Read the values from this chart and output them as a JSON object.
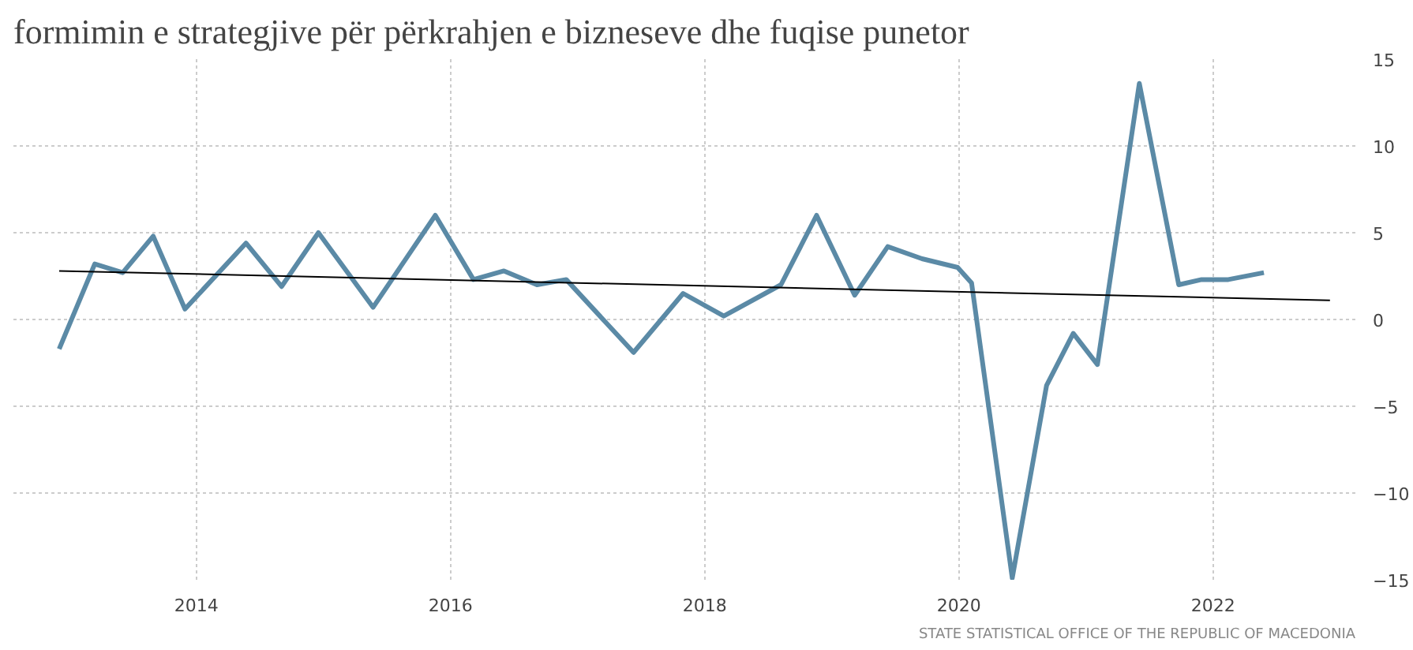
{
  "chart_data": {
    "type": "line",
    "title": "formimin e strategjive për përkrahjen e bizneseve dhe fuqise punetor",
    "annotations": [
      "STATE STATISTICAL OFFICE OF THE REPUBLIC OF MACEDONIA"
    ],
    "xlim": [
      2012.56,
      2023.12
    ],
    "xticks": [
      2014,
      2016,
      2018,
      2020,
      2022
    ],
    "ylim": [
      -15,
      15
    ],
    "yticks": [
      -15,
      -10,
      -5,
      0,
      5,
      10,
      15
    ],
    "grid": true,
    "marker": "none",
    "line_style": "solid",
    "series": [
      {
        "color": "#5b8aa6",
        "x": [
          2012.92,
          2013.2,
          2013.42,
          2013.66,
          2013.91,
          2014.39,
          2014.67,
          2014.96,
          2015.39,
          2015.88,
          2016.18,
          2016.42,
          2016.68,
          2016.91,
          2017.44,
          2017.83,
          2018.15,
          2018.6,
          2018.88,
          2019.18,
          2019.44,
          2019.71,
          2019.99,
          2020.1,
          2020.42,
          2020.69,
          2020.9,
          2021.09,
          2021.42,
          2021.73,
          2021.91,
          2022.12,
          2022.4
        ],
        "values": [
          -1.7,
          3.2,
          2.7,
          4.8,
          0.6,
          4.4,
          1.9,
          5.0,
          0.7,
          6.0,
          2.3,
          2.8,
          2.0,
          2.3,
          -1.9,
          1.5,
          0.2,
          2.0,
          6.0,
          1.4,
          4.2,
          3.5,
          3.0,
          2.1,
          -14.9,
          -3.8,
          -0.8,
          -2.6,
          13.6,
          2.0,
          2.3,
          2.3,
          2.7
        ]
      },
      {
        "color": "#000000",
        "x": [
          2012.92,
          2022.92
        ],
        "values": [
          2.8,
          1.1
        ]
      }
    ]
  }
}
